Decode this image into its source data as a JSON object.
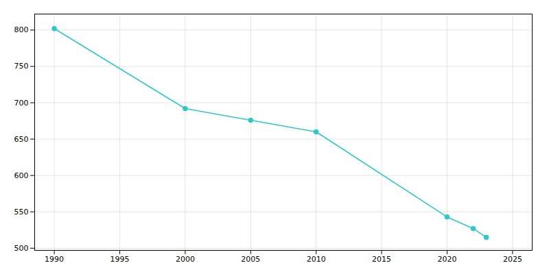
{
  "chart_data": {
    "type": "line",
    "x": [
      1990,
      2000,
      2005,
      2010,
      2020,
      2022,
      2023
    ],
    "values": [
      802,
      692,
      676,
      660,
      543,
      527,
      515
    ],
    "color": "#2ec8c8",
    "marker": "circle",
    "xlim": [
      1988.5,
      2026.5
    ],
    "xticks": [
      1990,
      1995,
      2000,
      2005,
      2010,
      2015,
      2020,
      2025
    ],
    "ylim": [
      497,
      822
    ],
    "yticks": [
      500,
      550,
      600,
      650,
      700,
      750,
      800
    ],
    "grid": true
  }
}
